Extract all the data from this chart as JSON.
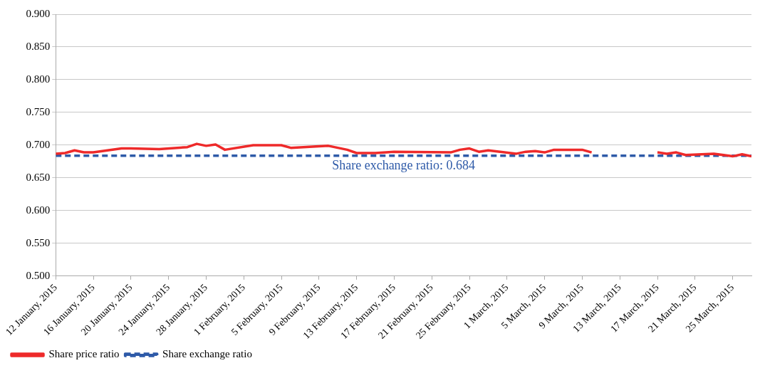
{
  "chart_data": {
    "type": "line",
    "ylim": [
      0.5,
      0.9
    ],
    "yticks": [
      {
        "value": 0.5,
        "label": "0.500"
      },
      {
        "value": 0.55,
        "label": "0.550"
      },
      {
        "value": 0.6,
        "label": "0.600"
      },
      {
        "value": 0.65,
        "label": "0.650"
      },
      {
        "value": 0.7,
        "label": "0.700"
      },
      {
        "value": 0.75,
        "label": "0.750"
      },
      {
        "value": 0.8,
        "label": "0.800"
      },
      {
        "value": 0.85,
        "label": "0.850"
      },
      {
        "value": 0.9,
        "label": "0.900"
      }
    ],
    "xlim": [
      "2015-01-12",
      "2015-03-27"
    ],
    "xticks": [
      {
        "value": "2015-01-12",
        "label": "12 January, 2015"
      },
      {
        "value": "2015-01-16",
        "label": "16 January, 2015"
      },
      {
        "value": "2015-01-20",
        "label": "20 January, 2015"
      },
      {
        "value": "2015-01-24",
        "label": "24 January, 2015"
      },
      {
        "value": "2015-01-28",
        "label": "28 January, 2015"
      },
      {
        "value": "2015-02-01",
        "label": "1 February, 2015"
      },
      {
        "value": "2015-02-05",
        "label": "5 February, 2015"
      },
      {
        "value": "2015-02-09",
        "label": "9 February, 2015"
      },
      {
        "value": "2015-02-13",
        "label": "13 February, 2015"
      },
      {
        "value": "2015-02-17",
        "label": "17 February, 2015"
      },
      {
        "value": "2015-02-21",
        "label": "21 February, 2015"
      },
      {
        "value": "2015-02-25",
        "label": "25 February, 2015"
      },
      {
        "value": "2015-03-01",
        "label": "1 March, 2015"
      },
      {
        "value": "2015-03-05",
        "label": "5 March, 2015"
      },
      {
        "value": "2015-03-09",
        "label": "9 March, 2015"
      },
      {
        "value": "2015-03-13",
        "label": "13 March, 2015"
      },
      {
        "value": "2015-03-17",
        "label": "17 March, 2015"
      },
      {
        "value": "2015-03-21",
        "label": "21 March, 2015"
      },
      {
        "value": "2015-03-25",
        "label": "25 March, 2015"
      }
    ],
    "grid": "y",
    "legend": "bottom",
    "marker": "none",
    "series": [
      {
        "name": "Share price ratio",
        "color": "#ee2a2a",
        "line_style": "solid",
        "x": [
          "2015-01-12",
          "2015-01-13",
          "2015-01-14",
          "2015-01-15",
          "2015-01-16",
          "2015-01-19",
          "2015-01-20",
          "2015-01-23",
          "2015-01-26",
          "2015-01-27",
          "2015-01-28",
          "2015-01-29",
          "2015-01-30",
          "2015-02-02",
          "2015-02-04",
          "2015-02-05",
          "2015-02-06",
          "2015-02-10",
          "2015-02-12",
          "2015-02-13",
          "2015-02-15",
          "2015-02-17",
          "2015-02-23",
          "2015-02-24",
          "2015-02-25",
          "2015-02-26",
          "2015-02-27",
          "2015-03-02",
          "2015-03-03",
          "2015-03-04",
          "2015-03-05",
          "2015-03-06",
          "2015-03-09",
          "2015-03-10",
          "2015-03-13",
          "2015-03-17",
          "2015-03-18",
          "2015-03-19",
          "2015-03-20",
          "2015-03-23",
          "2015-03-25",
          "2015-03-26",
          "2015-03-27"
        ],
        "values": [
          0.687,
          0.688,
          0.692,
          0.689,
          0.689,
          0.695,
          0.695,
          0.694,
          0.697,
          0.702,
          0.699,
          0.701,
          0.693,
          0.7,
          0.7,
          0.7,
          0.696,
          0.699,
          0.693,
          0.688,
          0.688,
          0.69,
          0.689,
          0.693,
          0.695,
          0.69,
          0.692,
          0.687,
          0.69,
          0.691,
          0.689,
          0.693,
          0.693,
          0.689,
          null,
          0.689,
          0.687,
          0.689,
          0.685,
          0.687,
          0.683,
          0.686,
          0.683
        ]
      },
      {
        "name": "Share exchange ratio",
        "color": "#2e5aa8",
        "line_style": "dashed",
        "x": [
          "2015-01-12",
          "2015-03-27"
        ],
        "values": [
          0.684,
          0.684
        ]
      }
    ],
    "annotations": [
      {
        "text": "Share exchange ratio: 0.684",
        "x": "2015-02-18",
        "y": 0.684
      }
    ]
  }
}
